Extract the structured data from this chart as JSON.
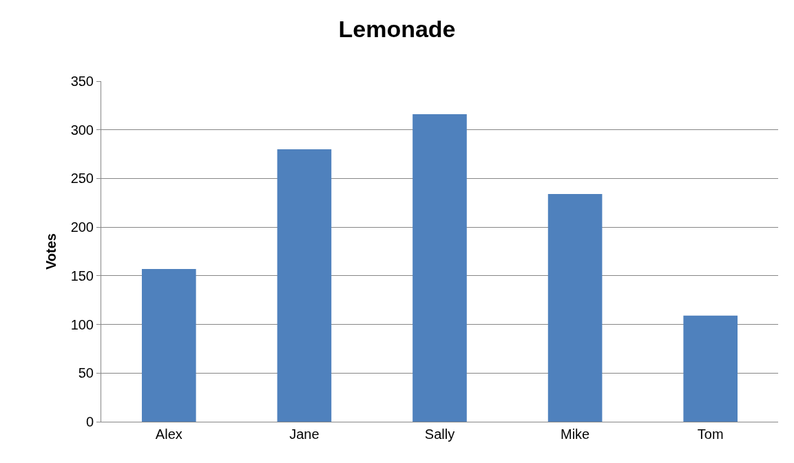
{
  "chart_data": {
    "type": "bar",
    "title": "Lemonade",
    "ylabel": "Votes",
    "categories": [
      "Alex",
      "Jane",
      "Sally",
      "Mike",
      "Tom"
    ],
    "values": [
      157,
      280,
      316,
      234,
      109
    ],
    "color": "#4f81bd",
    "ylim": [
      0,
      350
    ],
    "yticks": [
      0,
      50,
      100,
      150,
      200,
      250,
      300,
      350
    ],
    "grid": "y",
    "legend": false
  }
}
